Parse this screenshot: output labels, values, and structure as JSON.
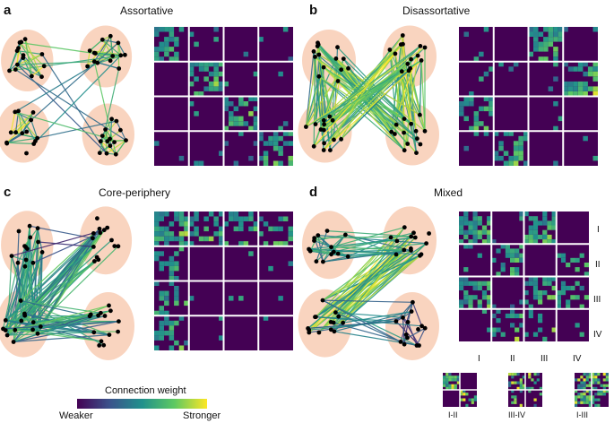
{
  "panels": [
    {
      "letter": "a",
      "title": "Assortative"
    },
    {
      "letter": "b",
      "title": "Disassortative"
    },
    {
      "letter": "c",
      "title": "Core-periphery"
    },
    {
      "letter": "d",
      "title": "Mixed"
    }
  ],
  "mixed_row_labels": [
    "I",
    "II",
    "III",
    "IV"
  ],
  "mixed_col_labels": [
    "I",
    "II",
    "III",
    "IV"
  ],
  "small_matrices": [
    "I-II",
    "III-IV",
    "I-III"
  ],
  "legend": {
    "title": "Connection weight",
    "low": "Weaker",
    "high": "Stronger"
  },
  "colors": {
    "matrix_bg": "#440154",
    "halo": "#f8cdb4",
    "node": "#000000",
    "cmap": [
      "#440154",
      "#3b528b",
      "#21918c",
      "#5ec962",
      "#fde725"
    ]
  }
}
